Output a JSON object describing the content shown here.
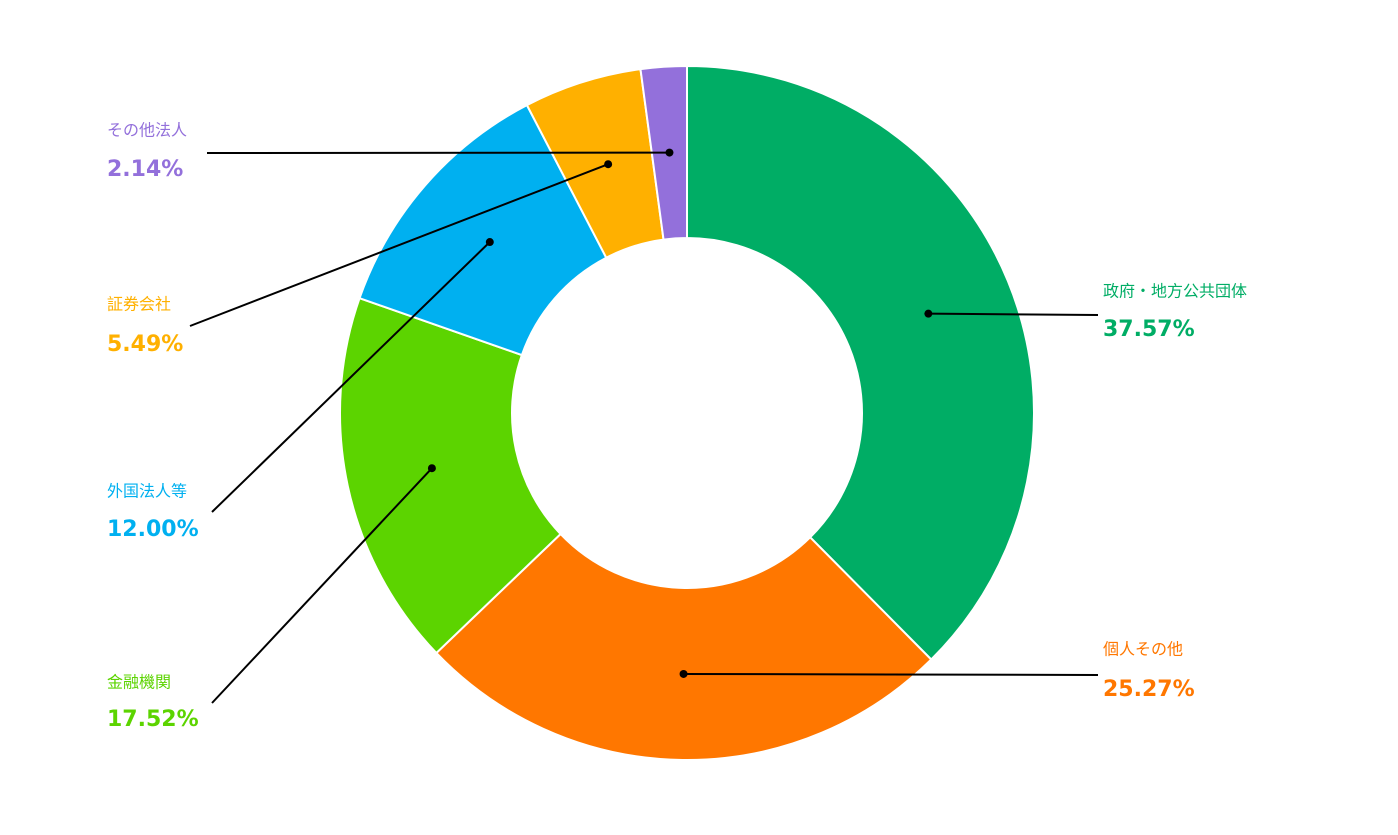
{
  "chart_data": {
    "type": "donut",
    "categories": [
      "政府・地方公共団体",
      "個人その他",
      "金融機関",
      "外国法人等",
      "証券会社",
      "その他法人"
    ],
    "values": [
      37.57,
      25.27,
      17.52,
      12.0,
      5.49,
      2.14
    ],
    "value_labels": [
      "37.57%",
      "25.27%",
      "17.52%",
      "12.00%",
      "5.49%",
      "2.14%"
    ],
    "colors": [
      "#00ad65",
      "#ff7700",
      "#5cd400",
      "#00b0f0",
      "#ffb000",
      "#9370db"
    ]
  }
}
